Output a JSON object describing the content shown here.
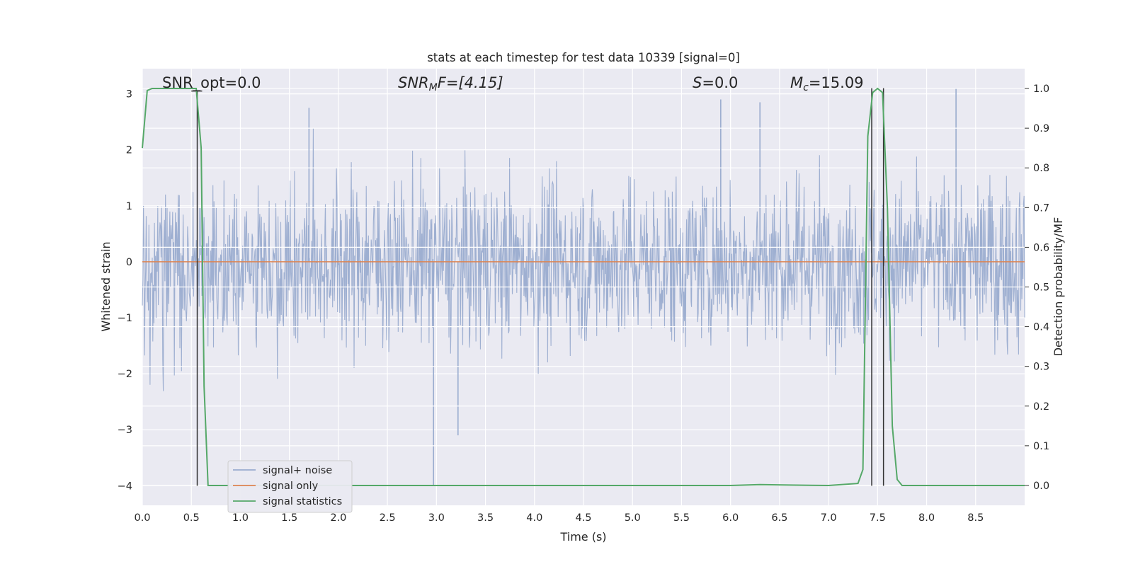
{
  "chart_data": {
    "type": "line",
    "title": "stats at each timestep for test data 10339 [signal=0]",
    "xlabel": "Time (s)",
    "ylabel_left": "Whitened strain",
    "ylabel_right": "Detection probability/MF",
    "xlim": [
      0,
      9.0
    ],
    "ylim_left": [
      -4.35,
      3.45
    ],
    "ylim_right": [
      -0.05,
      1.05
    ],
    "x_ticks": [
      "0.0",
      "0.5",
      "1.0",
      "1.5",
      "2.0",
      "2.5",
      "3.0",
      "3.5",
      "4.0",
      "4.5",
      "5.0",
      "5.5",
      "6.0",
      "6.5",
      "7.0",
      "7.5",
      "8.0",
      "8.5"
    ],
    "y_left_ticks": [
      "3",
      "2",
      "1",
      "0",
      "−1",
      "−2",
      "−3",
      "−4"
    ],
    "y_right_ticks": [
      "1.0",
      "0.9",
      "0.8",
      "0.7",
      "0.6",
      "0.5",
      "0.4",
      "0.3",
      "0.2",
      "0.1",
      "0.0"
    ],
    "grid": true,
    "legend_position": "lower-left",
    "annotations": {
      "snr_opt": "SNR_opt=0.0",
      "snr_mf_sym": "SNR",
      "snr_mf_sub": "M",
      "snr_mf_rest": "F=[4.15]",
      "s_sym": "S",
      "s_rest": "=0.0",
      "mc_sym": "M",
      "mc_sub": "c",
      "mc_rest": "=15.09"
    },
    "series": [
      {
        "name": "signal+ noise",
        "color": "#9aaccf",
        "description_level": "white noise, typical amplitude ±1.6, peaks ~±2.7",
        "outliers": [
          [
            2.97,
            -4.0
          ],
          [
            3.22,
            -3.1
          ],
          [
            8.3,
            3.1
          ],
          [
            1.7,
            2.75
          ],
          [
            6.3,
            2.85
          ],
          [
            5.9,
            2.9
          ]
        ]
      },
      {
        "name": "signal only",
        "color": "#dd8452",
        "x": [
          0,
          9.0
        ],
        "y": [
          0,
          0
        ]
      },
      {
        "name": "signal statistics",
        "color": "#55a868",
        "x": [
          0.0,
          0.05,
          0.1,
          0.2,
          0.3,
          0.4,
          0.5,
          0.55,
          0.6,
          0.63,
          0.67,
          0.7,
          1.0,
          2.0,
          3.0,
          4.0,
          5.0,
          6.0,
          6.3,
          6.6,
          7.0,
          7.3,
          7.35,
          7.4,
          7.45,
          7.5,
          7.55,
          7.6,
          7.65,
          7.7,
          7.75,
          8.0,
          9.0
        ],
        "y": [
          0.85,
          0.995,
          1.0,
          1.0,
          1.0,
          1.0,
          1.0,
          1.0,
          0.85,
          0.25,
          0.0,
          0.0,
          0.0,
          0.0,
          0.0,
          0.0,
          0.0,
          0.0,
          0.002,
          0.001,
          0.0,
          0.005,
          0.04,
          0.88,
          0.99,
          1.0,
          0.99,
          0.7,
          0.15,
          0.015,
          0.0,
          0.0,
          0.0
        ]
      }
    ],
    "vertical_markers": [
      {
        "x": 0.56,
        "y_top": 3.05
      },
      {
        "x": 7.44,
        "y_top": 3.1
      },
      {
        "x": 7.56,
        "y_top": 3.1
      }
    ],
    "legend": [
      "signal+ noise",
      "signal only",
      "signal statistics"
    ]
  }
}
